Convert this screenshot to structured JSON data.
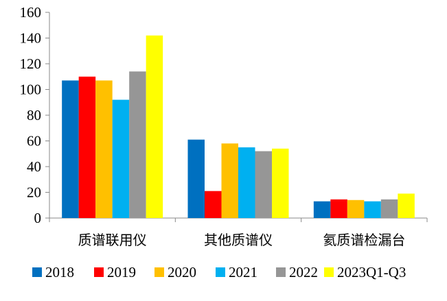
{
  "chart_data": {
    "type": "bar",
    "categories": [
      "质谱联用仪",
      "其他质谱仪",
      "氦质谱检漏台"
    ],
    "series": [
      {
        "name": "2018",
        "color": "#0070C0",
        "values": [
          107,
          61,
          13
        ]
      },
      {
        "name": "2019",
        "color": "#FF0000",
        "values": [
          110,
          21,
          14.5
        ]
      },
      {
        "name": "2020",
        "color": "#FFC000",
        "values": [
          107,
          58,
          14
        ]
      },
      {
        "name": "2021",
        "color": "#00B0F0",
        "values": [
          92,
          55,
          13
        ]
      },
      {
        "name": "2022",
        "color": "#969696",
        "values": [
          114,
          52,
          14.5
        ]
      },
      {
        "name": "2023Q1-Q3",
        "color": "#FFFF00",
        "values": [
          142,
          54,
          19
        ]
      }
    ],
    "yticks": [
      0,
      20,
      40,
      60,
      80,
      100,
      120,
      140,
      160
    ],
    "ylim": [
      0,
      160
    ],
    "title": "",
    "xlabel": "",
    "ylabel": "",
    "legend_position": "bottom",
    "grid": false
  }
}
